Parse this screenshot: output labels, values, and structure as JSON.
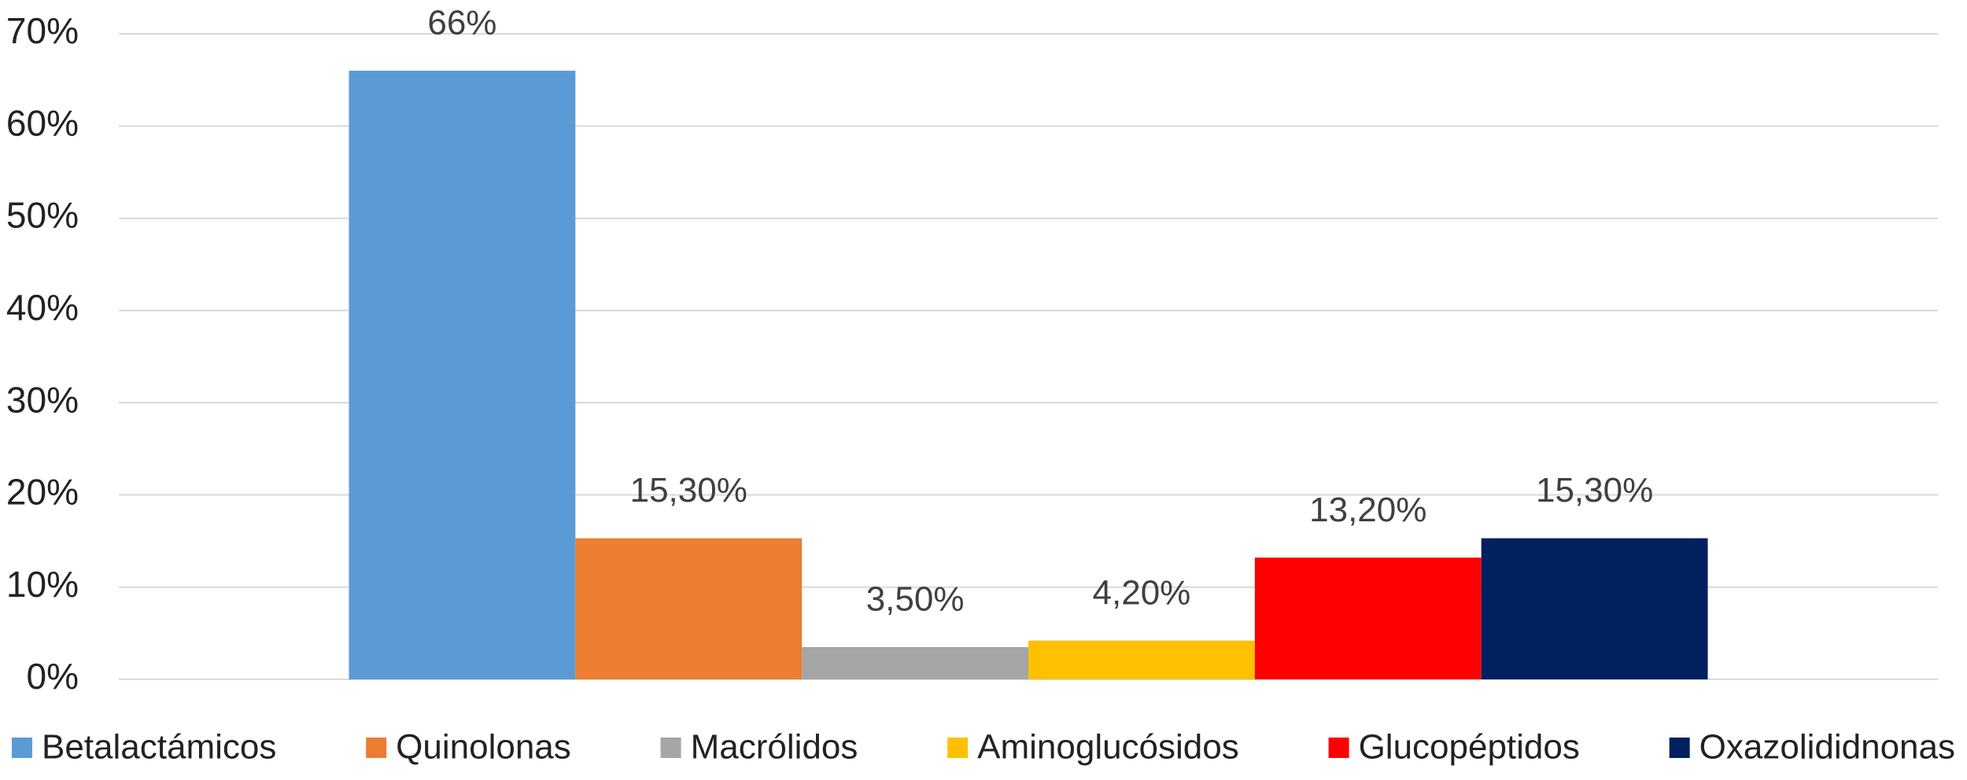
{
  "chart_data": {
    "type": "bar",
    "series": [
      {
        "name": "Betalactámicos",
        "color": "#5b9bd5",
        "values": [
          66
        ],
        "value_labels": [
          "66%"
        ]
      },
      {
        "name": "Quinolonas",
        "color": "#ed7d31",
        "values": [
          15.3
        ],
        "value_labels": [
          "15,30%"
        ]
      },
      {
        "name": "Macrólidos",
        "color": "#a5a5a5",
        "values": [
          3.5
        ],
        "value_labels": [
          "3,50%"
        ]
      },
      {
        "name": "Aminoglucósidos",
        "color": "#ffc000",
        "values": [
          4.2
        ],
        "value_labels": [
          "4,20%"
        ]
      },
      {
        "name": "Glucopéptidos",
        "color": "#ff0000",
        "values": [
          13.2
        ],
        "value_labels": [
          "13,20%"
        ]
      },
      {
        "name": "Oxazolididnonas",
        "color": "#002060",
        "values": [
          15.3
        ],
        "value_labels": [
          "15,30%"
        ]
      }
    ],
    "ylim": [
      0,
      70
    ],
    "yticks": [
      {
        "value": 0,
        "label": "0%"
      },
      {
        "value": 10,
        "label": "10%"
      },
      {
        "value": 20,
        "label": "20%"
      },
      {
        "value": 30,
        "label": "30%"
      },
      {
        "value": 40,
        "label": "40%"
      },
      {
        "value": 50,
        "label": "50%"
      },
      {
        "value": 60,
        "label": "60%"
      },
      {
        "value": 70,
        "label": "70%"
      }
    ],
    "grid": true,
    "legend": "bottom"
  }
}
